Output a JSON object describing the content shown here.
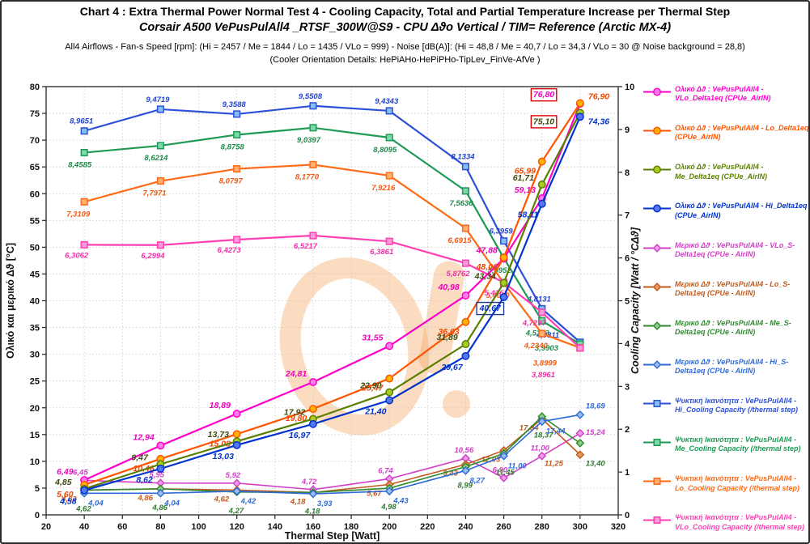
{
  "header": {
    "line1": "Chart 4 :  Extra Thermal Power  Normal  Test  4  -  Cooling Capacity,  Total and Partial Temperature Increase per Thermal Step",
    "line2": "Corsair A500  VePusPulAll4 _RTSF_300W@S9 - CPU  Δϑo Vertical / TIM= Reference (Arctic MX-4)",
    "line3": "All4  Airflows  -  Fan-s Speed [rpm]: (Hi = 2457 / Me = 1844 / Lo = 1435 / VLo = 999) - Noise  [dB(A)]: (Hi = 48,8 / Me = 40,7 / Lo = 34,3 / VLo = 30 @ Noise background = 28,8)",
    "line4": "(Cooler  Orientation Details: HePiAHo-HePiPHo-TipLev_FinVe-AfVe )"
  },
  "chart_data": {
    "type": "line",
    "x": [
      40,
      80,
      120,
      160,
      200,
      240,
      260,
      280,
      300
    ],
    "x_axis": {
      "title": "Thermal Step [Watt]",
      "min": 20,
      "max": 320,
      "step": 20
    },
    "y_left_axis": {
      "title": "Ολικό και μερικό Δϑ [°C]",
      "min": 0,
      "max": 80,
      "step": 5
    },
    "y_right_axis": {
      "title": "Cooling Capacity [Watt / °CΔϑ]",
      "min": 0,
      "max": 10,
      "step": 1
    },
    "grid": true,
    "series": [
      {
        "id": "cap_hi",
        "name": "Ψυκτική Ικανότητα : VePusPulAll4 - Hi_Cooling Capacity (/thermal step)",
        "group": "capacity",
        "axis": "right",
        "marker": "square",
        "decimals": 4,
        "color": "#2D50D8",
        "fill": "#85C0F2",
        "label_color": "#2244CC",
        "values": [
          8.9651,
          9.4719,
          9.3588,
          9.5508,
          9.4343,
          8.1334,
          6.3959,
          4.8131,
          4.0311
        ]
      },
      {
        "id": "cap_me",
        "name": "Ψυκτική Ικανότητα : VePusPulAll4 - Me_Cooling Capacity (/thermal step)",
        "group": "capacity",
        "axis": "right",
        "marker": "square",
        "decimals": 4,
        "color": "#1F9A55",
        "fill": "#7ED8AE",
        "label_color": "#1F8A4A",
        "values": [
          8.4585,
          8.6214,
          8.8758,
          9.0397,
          8.8095,
          7.5636,
          5.9952,
          4.5313,
          3.9903
        ]
      },
      {
        "id": "cap_lo",
        "name": "Ψυκτική Ικανότητα : VePusPulAll4 - Lo_Cooling Capacity (/thermal step)",
        "group": "capacity",
        "axis": "right",
        "marker": "square",
        "decimals": 4,
        "color": "#FF6A14",
        "fill": "#FFB070",
        "label_color": "#F05A14",
        "values": [
          7.3109,
          7.7971,
          8.0797,
          8.177,
          7.9216,
          6.6915,
          5.409,
          4.234,
          3.8999
        ]
      },
      {
        "id": "cap_vlo",
        "name": "Ψυκτική Ικανότητα : VePusPulAll4 - VLo_Cooling Capacity (/thermal step)",
        "group": "capacity",
        "axis": "right",
        "marker": "square",
        "decimals": 4,
        "color": "#FF3FB3",
        "fill": "#FF9AD8",
        "label_color": "#F030A8",
        "values": [
          6.3062,
          6.2994,
          6.4273,
          6.5217,
          6.3861,
          5.8762,
          5.4261,
          4.7297,
          3.8961
        ]
      },
      {
        "id": "s_vlo",
        "name": "Μερικό Δϑ : VePusPulAll4 - VLo_S-Delta1eq (CPUe - AirIN)",
        "group": "partial",
        "axis": "left",
        "marker": "diamond",
        "decimals": 2,
        "color": "#D23FC8",
        "fill": "#EC9AE4",
        "label_color": "#D23FC8",
        "values": [
          6.45,
          5.95,
          5.92,
          4.72,
          6.74,
          10.56,
          6.9,
          11.0,
          15.24
        ]
      },
      {
        "id": "s_lo",
        "name": "Μερικό Δϑ : VePusPulAll4 - Lo_S-Delta1eq (CPUe - AirIN)",
        "group": "partial",
        "axis": "left",
        "marker": "diamond",
        "decimals": 2,
        "color": "#C05A1E",
        "fill": "#E89A60",
        "label_color": "#C05A1E",
        "values": [
          4.62,
          4.86,
          4.62,
          4.18,
          5.67,
          9.43,
          12.03,
          17.94,
          11.25
        ]
      },
      {
        "id": "s_me",
        "name": "Μερικό Δϑ : VePusPulAll4 - Me_S-Delta1eq (CPUe - AirIN)",
        "group": "partial",
        "axis": "left",
        "marker": "diamond",
        "decimals": 2,
        "color": "#2F8A2F",
        "fill": "#8CCB8C",
        "label_color": "#2F7A2F",
        "values": [
          4.62,
          4.86,
          4.27,
          4.18,
          4.98,
          8.99,
          11.45,
          18.37,
          13.4
        ]
      },
      {
        "id": "s_hi",
        "name": "Μερικό Δϑ : VePusPulAll4 - Hi_S-Delta1eq (CPUe - AirIN)",
        "group": "partial",
        "axis": "left",
        "marker": "diamond",
        "decimals": 2,
        "color": "#2E6BD8",
        "fill": "#9ABCF0",
        "label_color": "#2E6BD8",
        "values": [
          4.04,
          4.04,
          4.42,
          3.93,
          4.43,
          8.27,
          11.0,
          17.44,
          18.69
        ]
      },
      {
        "id": "tot_vlo",
        "name": "Ολικό Δϑ : VePusPulAll4 - VLo_Delta1eq (CPUe_AirIN)",
        "group": "total",
        "axis": "left",
        "marker": "circle",
        "decimals": 2,
        "color": "#FF00CC",
        "fill": "#FF7BE8",
        "label_color": "#F000C0",
        "values": [
          6.49,
          12.94,
          18.89,
          24.81,
          31.55,
          40.98,
          47.88,
          59.13,
          76.8
        ]
      },
      {
        "id": "tot_lo",
        "name": "Ολικό Δϑ : VePusPulAll4 - Lo_Delta1eq (CPUe_AirIN)",
        "group": "total",
        "axis": "left",
        "marker": "circle",
        "decimals": 2,
        "color": "#FF5500",
        "fill": "#FFB300",
        "label_color": "#F04800",
        "values": [
          5.6,
          10.46,
          15.08,
          19.8,
          25.47,
          36.03,
          48.06,
          65.99,
          76.9
        ]
      },
      {
        "id": "tot_me",
        "name": "Ολικό Δϑ : VePusPulAll4 - Me_Delta1eq (CPUe_AirIN)",
        "group": "total",
        "axis": "left",
        "marker": "circle",
        "decimals": 2,
        "color": "#5B7F00",
        "fill": "#AACC22",
        "label_color": "#3F4A10",
        "values": [
          4.85,
          9.47,
          13.73,
          17.92,
          22.9,
          31.89,
          43.34,
          61.71,
          75.1
        ]
      },
      {
        "id": "tot_hi",
        "name": "Ολικό Δϑ : VePusPulAll4 - Hi_Delta1eq (CPUe_AirIN)",
        "group": "total",
        "axis": "left",
        "marker": "circle",
        "decimals": 2,
        "color": "#0033CC",
        "fill": "#5577EE",
        "label_color": "#0033CC",
        "values": [
          4.58,
          8.62,
          13.03,
          16.97,
          21.4,
          29.67,
          40.67,
          58.11,
          74.36
        ]
      }
    ],
    "legend_order": [
      "tot_vlo",
      "tot_lo",
      "tot_me",
      "tot_hi",
      "s_vlo",
      "s_lo",
      "s_me",
      "s_hi",
      "cap_hi",
      "cap_me",
      "cap_lo",
      "cap_vlo"
    ],
    "boxed_labels": [
      {
        "series": "tot_vlo",
        "index": 8,
        "color": "#DD0000"
      },
      {
        "series": "tot_me",
        "index": 8,
        "color": "#DD0000"
      },
      {
        "series": "tot_hi",
        "index": 6,
        "color": "#223A8C"
      }
    ]
  }
}
